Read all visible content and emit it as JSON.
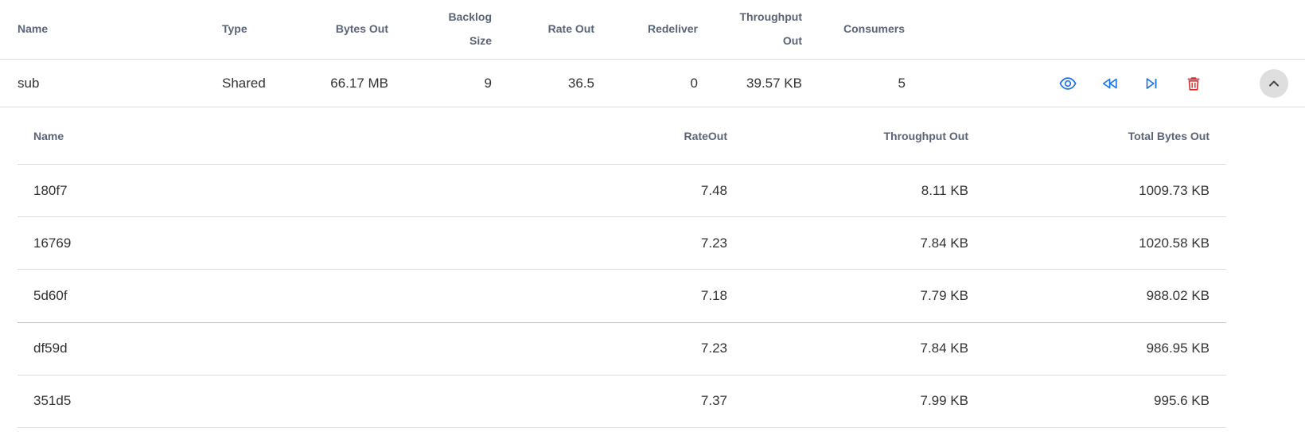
{
  "table": {
    "headers": {
      "name": "Name",
      "type": "Type",
      "bytes_out": "Bytes Out",
      "backlog_line1": "Backlog",
      "backlog_line2": "Size",
      "rate_out": "Rate Out",
      "redeliver": "Redeliver",
      "throughput_line1": "Throughput",
      "throughput_line2": "Out",
      "consumers": "Consumers"
    },
    "row": {
      "name": "sub",
      "type": "Shared",
      "bytes_out": "66.17 MB",
      "backlog_size": "9",
      "rate_out": "36.5",
      "redeliver": "0",
      "throughput_out": "39.57 KB",
      "consumers": "5"
    },
    "actions": {
      "view_icon": "eye-icon",
      "rewind_icon": "rewind-icon",
      "skip_icon": "skip-to-end-icon",
      "delete_icon": "trash-icon",
      "collapse_icon": "chevron-up-icon"
    }
  },
  "consumers": {
    "headers": {
      "name": "Name",
      "rate_out": "RateOut",
      "throughput_out": "Throughput Out",
      "total_bytes_out": "Total Bytes Out"
    },
    "rows": [
      {
        "name": "180f7",
        "rate_out": "7.48",
        "throughput_out": "8.11 KB",
        "total_bytes_out": "1009.73 KB"
      },
      {
        "name": "16769",
        "rate_out": "7.23",
        "throughput_out": "7.84 KB",
        "total_bytes_out": "1020.58 KB"
      },
      {
        "name": "5d60f",
        "rate_out": "7.18",
        "throughput_out": "7.79 KB",
        "total_bytes_out": "988.02 KB"
      },
      {
        "name": "df59d",
        "rate_out": "7.23",
        "throughput_out": "7.84 KB",
        "total_bytes_out": "986.95 KB"
      },
      {
        "name": "351d5",
        "rate_out": "7.37",
        "throughput_out": "7.99 KB",
        "total_bytes_out": "995.6 KB"
      }
    ]
  },
  "colors": {
    "header_text": "#5a6478",
    "action_blue": "#1a73e8",
    "delete_red": "#d32f2f",
    "divider": "#dcdcdc"
  }
}
